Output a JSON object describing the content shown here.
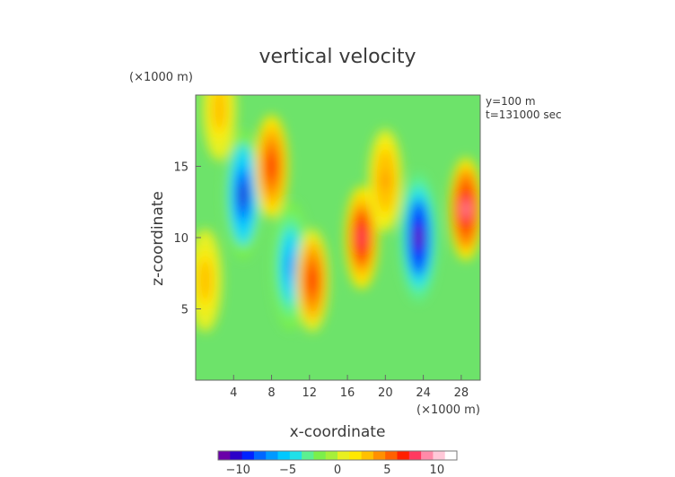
{
  "chart_data": {
    "type": "heatmap",
    "title": "vertical velocity",
    "xlabel": "x-coordinate",
    "ylabel": "z-coordinate",
    "x_unit_label": "(×1000 m)",
    "y_unit_label": "(×1000 m)",
    "annotations": [
      "y=100 m",
      "t=131000 sec"
    ],
    "xlim": [
      0,
      30
    ],
    "ylim": [
      0,
      20
    ],
    "x_ticks": [
      4,
      8,
      12,
      16,
      20,
      24,
      28
    ],
    "y_ticks": [
      5,
      10,
      15
    ],
    "colorbar": {
      "range": [
        -12,
        12
      ],
      "ticks": [
        -10,
        -5,
        0,
        5,
        10
      ],
      "tick_labels": [
        "−10",
        "−5",
        "0",
        "5",
        "10"
      ],
      "colors": [
        "#6a00a8",
        "#2b00c8",
        "#0022ff",
        "#0066ff",
        "#0099ff",
        "#00c8ff",
        "#20e0e8",
        "#5cf090",
        "#7bf04a",
        "#a6f03a",
        "#e8f020",
        "#ffe800",
        "#ffc000",
        "#ff9000",
        "#ff6000",
        "#ff2000",
        "#ff3a60",
        "#ff8aa8",
        "#ffc8d8",
        "#ffffff"
      ]
    },
    "features": [
      {
        "kind": "downdraft",
        "x": 5,
        "z": 13,
        "value": -10
      },
      {
        "kind": "downdraft",
        "x": 10,
        "z": 8,
        "value": -7
      },
      {
        "kind": "updraft",
        "x": 8,
        "z": 15,
        "value": 7
      },
      {
        "kind": "updraft",
        "x": 12.3,
        "z": 7,
        "value": 6
      },
      {
        "kind": "updraft",
        "x": 17.5,
        "z": 10,
        "value": 8
      },
      {
        "kind": "updraft",
        "x": 20,
        "z": 14,
        "value": 4
      },
      {
        "kind": "downdraft",
        "x": 23.5,
        "z": 10,
        "value": -12
      },
      {
        "kind": "updraft",
        "x": 28.5,
        "z": 12,
        "value": 9
      },
      {
        "kind": "updraft",
        "x": 2.5,
        "z": 19,
        "value": 3
      },
      {
        "kind": "updraft",
        "x": 1,
        "z": 7,
        "value": 3
      }
    ]
  }
}
